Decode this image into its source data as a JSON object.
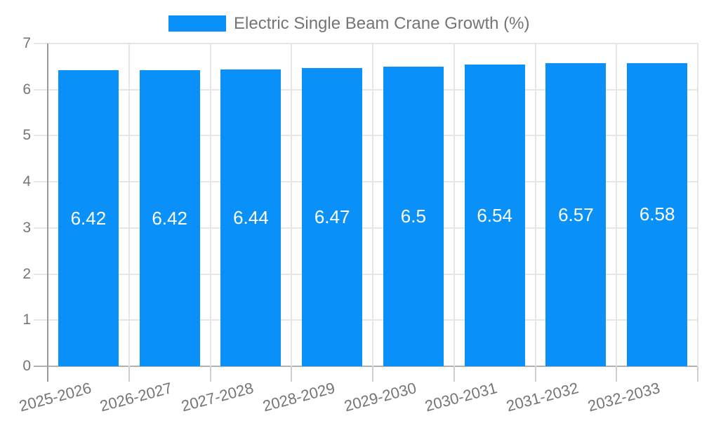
{
  "legend": {
    "label": "Electric Single Beam Crane Growth (%)"
  },
  "chart_data": {
    "type": "bar",
    "title": "Electric Single Beam Crane Growth (%)",
    "categories": [
      "2025-2026",
      "2026-2027",
      "2027-2028",
      "2028-2029",
      "2029-2030",
      "2030-2031",
      "2031-2032",
      "2032-2033"
    ],
    "values": [
      6.42,
      6.42,
      6.44,
      6.47,
      6.5,
      6.54,
      6.57,
      6.58
    ],
    "value_labels": [
      "6.42",
      "6.42",
      "6.44",
      "6.47",
      "6.5",
      "6.54",
      "6.57",
      "6.58"
    ],
    "xlabel": "",
    "ylabel": "",
    "ylim": [
      0,
      7
    ],
    "yticks": [
      0,
      1,
      2,
      3,
      4,
      5,
      6,
      7
    ],
    "grid": true,
    "legend_position": "top-center",
    "x_label_rotation_deg": -15,
    "colors": {
      "bar": "#0a91f9",
      "bar_label": "#ffffff",
      "axis_text": "#757575",
      "grid": "#e6e6e6",
      "axis_line": "#b3b3b3"
    }
  }
}
